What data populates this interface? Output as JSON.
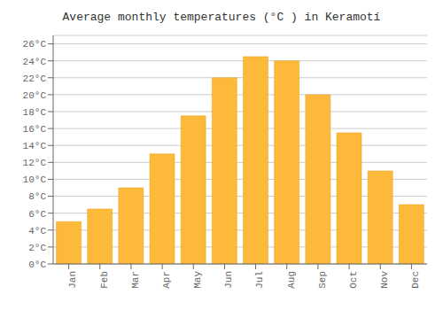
{
  "chart_data": {
    "type": "bar",
    "title": "Average monthly temperatures (°C ) in Keramotí",
    "categories": [
      "Jan",
      "Feb",
      "Mar",
      "Apr",
      "May",
      "Jun",
      "Jul",
      "Aug",
      "Sep",
      "Oct",
      "Nov",
      "Dec"
    ],
    "values": [
      5,
      6.5,
      9,
      13,
      17.5,
      22,
      24.5,
      24,
      20,
      15.5,
      11,
      7
    ],
    "color": "#FDB93A",
    "ylim": [
      0,
      27
    ],
    "yticks": [
      {
        "value": 0,
        "label": "0°C"
      },
      {
        "value": 2,
        "label": "2°C"
      },
      {
        "value": 4,
        "label": "4°C"
      },
      {
        "value": 6,
        "label": "6°C"
      },
      {
        "value": 8,
        "label": "8°C"
      },
      {
        "value": 10,
        "label": "10°C"
      },
      {
        "value": 12,
        "label": "12°C"
      },
      {
        "value": 14,
        "label": "14°C"
      },
      {
        "value": 16,
        "label": "16°C"
      },
      {
        "value": 18,
        "label": "18°C"
      },
      {
        "value": 20,
        "label": "20°C"
      },
      {
        "value": 22,
        "label": "22°C"
      },
      {
        "value": 24,
        "label": "24°C"
      },
      {
        "value": 26,
        "label": "26°C"
      }
    ],
    "grid": true
  }
}
